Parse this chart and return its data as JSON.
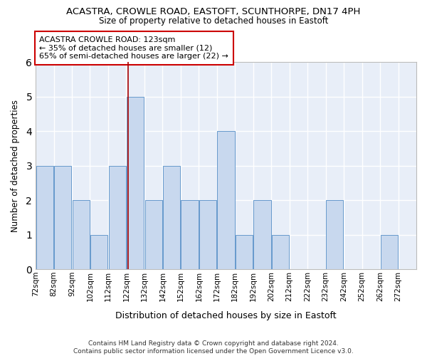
{
  "title": "ACASTRA, CROWLE ROAD, EASTOFT, SCUNTHORPE, DN17 4PH",
  "subtitle": "Size of property relative to detached houses in Eastoft",
  "xlabel": "Distribution of detached houses by size in Eastoft",
  "ylabel": "Number of detached properties",
  "bar_color": "#c8d8ee",
  "bar_edge_color": "#6699cc",
  "bins": [
    72,
    82,
    92,
    102,
    112,
    122,
    132,
    142,
    152,
    162,
    172,
    182,
    192,
    202,
    212,
    222,
    232,
    242,
    252,
    262,
    272
  ],
  "counts": [
    3,
    3,
    2,
    1,
    3,
    5,
    2,
    3,
    2,
    2,
    4,
    1,
    2,
    1,
    0,
    0,
    2,
    0,
    0,
    1,
    0
  ],
  "property_size": 123,
  "red_line_color": "#aa0000",
  "ylim": [
    0,
    6
  ],
  "yticks": [
    0,
    1,
    2,
    3,
    4,
    5,
    6
  ],
  "annotation_title": "ACASTRA CROWLE ROAD: 123sqm",
  "annotation_line1": "← 35% of detached houses are smaller (12)",
  "annotation_line2": "65% of semi-detached houses are larger (22) →",
  "annotation_box_color": "#ffffff",
  "annotation_box_edge_color": "#cc0000",
  "footer_line1": "Contains HM Land Registry data © Crown copyright and database right 2024.",
  "footer_line2": "Contains public sector information licensed under the Open Government Licence v3.0.",
  "background_color": "#ffffff",
  "plot_bg_color": "#e8eef8",
  "grid_color": "#ffffff"
}
